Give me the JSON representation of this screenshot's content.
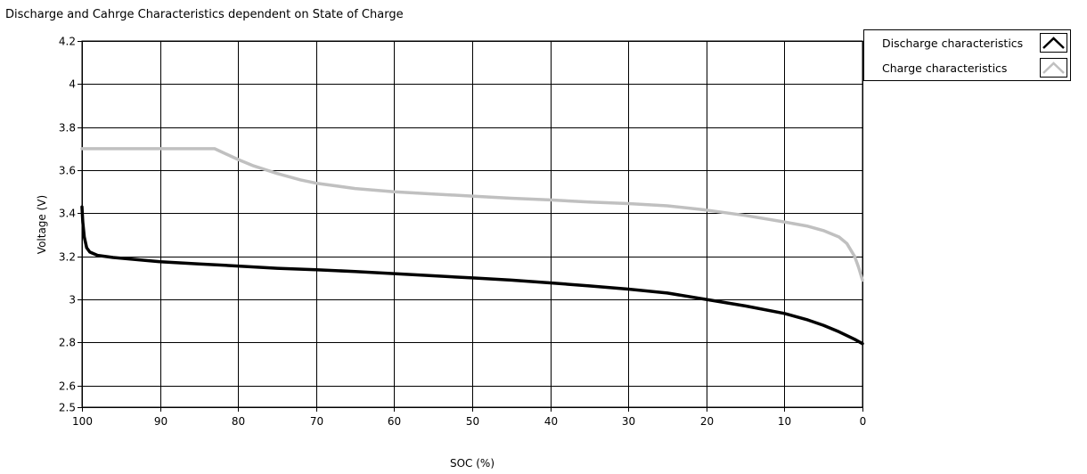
{
  "chart_data": {
    "type": "line",
    "title": "Discharge and Cahrge Characteristics dependent on State of Charge",
    "xlabel": "SOC (%)",
    "ylabel": "Voltage (V)",
    "xlim": [
      100,
      0
    ],
    "ylim": [
      2.5,
      4.2
    ],
    "x_ticks": [
      "100",
      "90",
      "80",
      "70",
      "60",
      "50",
      "40",
      "30",
      "20",
      "10",
      "0"
    ],
    "y_ticks": [
      "2.5",
      "2.6",
      "2.8",
      "3",
      "3.2",
      "3.4",
      "3.6",
      "3.8",
      "4",
      "4.2"
    ],
    "grid": true,
    "legend_position": "top-right",
    "series": [
      {
        "name": "Discharge characteristics",
        "color": "#000000",
        "points": [
          [
            100,
            3.43
          ],
          [
            99.9,
            3.36
          ],
          [
            99.7,
            3.29
          ],
          [
            99.4,
            3.24
          ],
          [
            99,
            3.22
          ],
          [
            98,
            3.205
          ],
          [
            96,
            3.195
          ],
          [
            93,
            3.185
          ],
          [
            90,
            3.175
          ],
          [
            85,
            3.165
          ],
          [
            80,
            3.155
          ],
          [
            75,
            3.145
          ],
          [
            70,
            3.138
          ],
          [
            65,
            3.13
          ],
          [
            60,
            3.12
          ],
          [
            55,
            3.11
          ],
          [
            50,
            3.1
          ],
          [
            45,
            3.09
          ],
          [
            40,
            3.077
          ],
          [
            35,
            3.063
          ],
          [
            30,
            3.048
          ],
          [
            25,
            3.03
          ],
          [
            20,
            3.0
          ],
          [
            15,
            2.97
          ],
          [
            10,
            2.935
          ],
          [
            7,
            2.905
          ],
          [
            5,
            2.88
          ],
          [
            3,
            2.85
          ],
          [
            1,
            2.815
          ],
          [
            0,
            2.795
          ]
        ]
      },
      {
        "name": "Charge characteristics",
        "color": "#c0c0c0",
        "points": [
          [
            100,
            3.7
          ],
          [
            95,
            3.7
          ],
          [
            90,
            3.7
          ],
          [
            85,
            3.7
          ],
          [
            83,
            3.7
          ],
          [
            80,
            3.65
          ],
          [
            78,
            3.62
          ],
          [
            75,
            3.585
          ],
          [
            72,
            3.555
          ],
          [
            70,
            3.54
          ],
          [
            65,
            3.515
          ],
          [
            60,
            3.5
          ],
          [
            55,
            3.49
          ],
          [
            50,
            3.48
          ],
          [
            45,
            3.47
          ],
          [
            40,
            3.462
          ],
          [
            35,
            3.452
          ],
          [
            30,
            3.445
          ],
          [
            25,
            3.435
          ],
          [
            20,
            3.415
          ],
          [
            15,
            3.39
          ],
          [
            10,
            3.36
          ],
          [
            7,
            3.34
          ],
          [
            5,
            3.32
          ],
          [
            3,
            3.29
          ],
          [
            2,
            3.26
          ],
          [
            1,
            3.2
          ],
          [
            0.5,
            3.15
          ],
          [
            0,
            3.09
          ]
        ]
      }
    ]
  }
}
